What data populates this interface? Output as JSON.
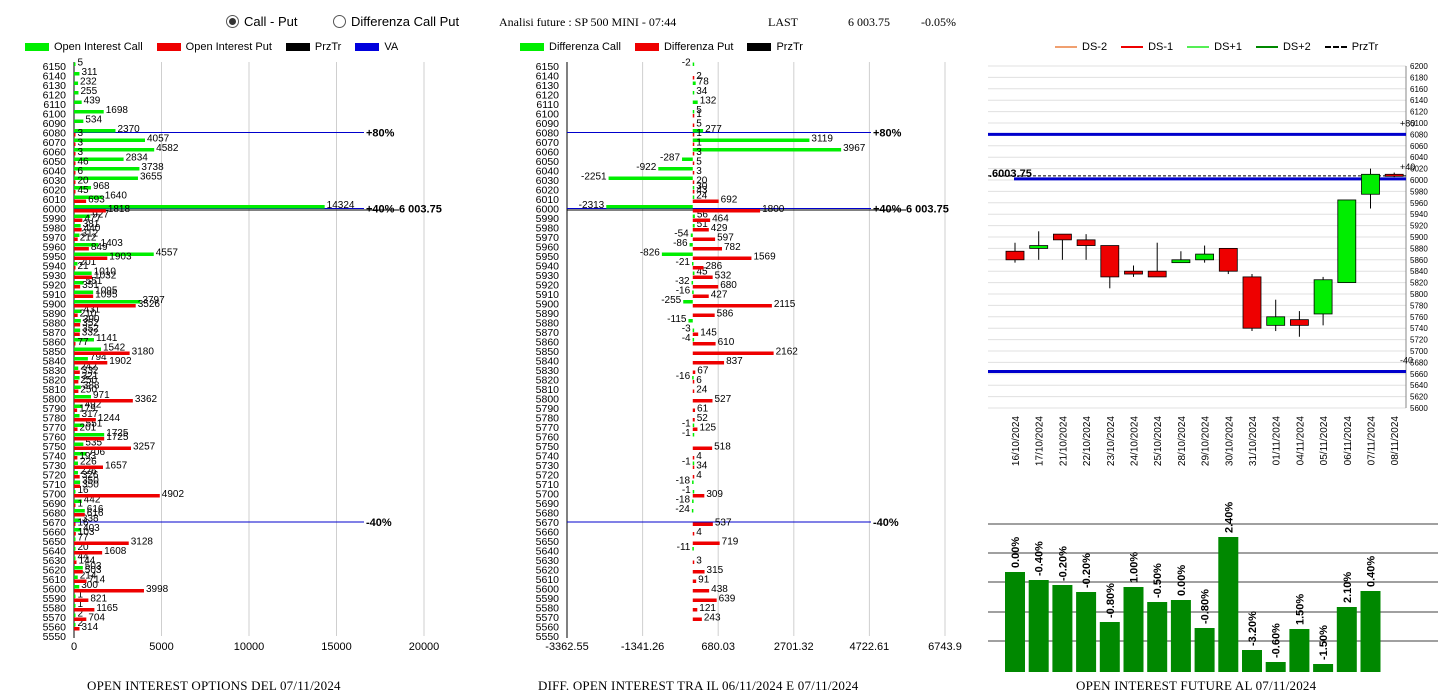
{
  "header": {
    "radio_call_put": "Call - Put",
    "radio_diff": "Differenza Call Put",
    "title": "Analisi future : SP 500 MINI - 07:44",
    "last_label": "LAST",
    "last_value": "6 003.75",
    "last_change": "-0.05%"
  },
  "legend1": [
    {
      "label": "Open Interest Call",
      "color": "#00ee00"
    },
    {
      "label": "Open Interest Put",
      "color": "#ee0000"
    },
    {
      "label": "PrzTr",
      "color": "#000000"
    },
    {
      "label": "VA",
      "color": "#0000dd"
    }
  ],
  "legend2": [
    {
      "label": "Differenza Call",
      "color": "#00ee00"
    },
    {
      "label": "Differenza Put",
      "color": "#ee0000"
    },
    {
      "label": "PrzTr",
      "color": "#000000"
    }
  ],
  "legend3": [
    {
      "label": "DS-2",
      "color": "#f0a070",
      "dash": false
    },
    {
      "label": "DS-1",
      "color": "#ee0000",
      "dash": false
    },
    {
      "label": "DS+1",
      "color": "#55ee55",
      "dash": false
    },
    {
      "label": "DS+2",
      "color": "#008800",
      "dash": false
    },
    {
      "label": "PrzTr",
      "color": "#000000",
      "dash": true
    }
  ],
  "captions": {
    "c1": "OPEN INTEREST OPTIONS DEL 07/11/2024",
    "c2": "DIFF. OPEN INTEREST TRA IL 06/11/2024 E 07/11/2024",
    "c3": "OPEN INTEREST FUTURE AL 07/11/2024"
  },
  "chart_data": [
    {
      "type": "bar",
      "orientation": "horizontal",
      "strikes": [
        6150,
        6140,
        6130,
        6120,
        6110,
        6100,
        6090,
        6080,
        6070,
        6060,
        6050,
        6040,
        6030,
        6020,
        6010,
        6000,
        5990,
        5980,
        5970,
        5960,
        5950,
        5940,
        5930,
        5920,
        5910,
        5900,
        5890,
        5880,
        5870,
        5860,
        5850,
        5840,
        5830,
        5820,
        5810,
        5800,
        5790,
        5780,
        5770,
        5760,
        5750,
        5740,
        5730,
        5720,
        5710,
        5700,
        5690,
        5680,
        5670,
        5660,
        5650,
        5640,
        5630,
        5620,
        5610,
        5600,
        5590,
        5580,
        5570,
        5560,
        5550
      ],
      "strike_labels": [
        "6150",
        "6140",
        "6130",
        "6120",
        "6110",
        "6100",
        "6090",
        "6080",
        "6070",
        "6060",
        "6050",
        "6040",
        "6030",
        "6020",
        "6010",
        "6000",
        "5990",
        "5980",
        "5970",
        "5960",
        "5950",
        "5940",
        "5930",
        "5920",
        "5910",
        "5900",
        "5890",
        "5880",
        "5870",
        "5860",
        "5850",
        "5840",
        "5830",
        "5820",
        "5810",
        "5800",
        "5790",
        "5780",
        "5770",
        "5760",
        "5750",
        "5740",
        "5730",
        "5720",
        "5710",
        "5700",
        "5690",
        "5680",
        "5670",
        "5660",
        "5650",
        "5640",
        "5630",
        "5620",
        "5610",
        "5600",
        "5590",
        "5580",
        "5570",
        "5560",
        "5550"
      ],
      "series": [
        {
          "name": "Open Interest Call",
          "values": [
            5,
            311,
            232,
            255,
            439,
            1698,
            534,
            2370,
            4057,
            4582,
            2834,
            3738,
            3655,
            968,
            1640,
            14324,
            927,
            381,
            312,
            1403,
            4557,
            201,
            1010,
            551,
            1095,
            3797,
            431,
            390,
            352,
            1141,
            1542,
            794,
            242,
            321,
            388,
            971,
            492,
            317,
            551,
            1725,
            535,
            706,
            226,
            226,
            350,
            16,
            442,
            616,
            338,
            403,
            77,
            20,
            44,
            503,
            214,
            300,
            1,
            1,
            2,
            2,
            0
          ]
        },
        {
          "name": "Open Interest Put",
          "values": [
            0,
            0,
            0,
            0,
            0,
            0,
            0,
            3,
            3,
            3,
            46,
            6,
            20,
            45,
            693,
            1818,
            477,
            440,
            212,
            849,
            1903,
            21,
            1032,
            351,
            1095,
            3526,
            210,
            352,
            332,
            77,
            3180,
            1902,
            332,
            250,
            250,
            3362,
            179,
            1244,
            201,
            1725,
            3257,
            193,
            1657,
            326,
            350,
            4902,
            1,
            616,
            16,
            103,
            3128,
            1608,
            144,
            503,
            714,
            3998,
            821,
            1165,
            704,
            314,
            0
          ]
        }
      ],
      "ticks": [
        "0",
        "5000",
        "10000",
        "15000",
        "20000"
      ],
      "xlim": [
        0,
        20000
      ],
      "markers": [
        {
          "strike": 6080,
          "label": "+80%"
        },
        {
          "strike": 6000,
          "label": "+40%"
        },
        {
          "strike": 5670,
          "label": "-40%"
        }
      ],
      "price_label": "6 003.75"
    },
    {
      "type": "bar",
      "orientation": "horizontal",
      "series": [
        {
          "name": "Differenza Call",
          "values": [
            -2,
            0,
            78,
            34,
            132,
            5,
            0,
            277,
            3119,
            3967,
            -287,
            -922,
            -2251,
            30,
            24,
            -2313,
            56,
            51,
            -54,
            -86,
            -826,
            -21,
            45,
            -32,
            -16,
            -255,
            0,
            -115,
            -3,
            -4,
            0,
            0,
            0,
            -16,
            0,
            0,
            0,
            0,
            -1,
            -1,
            0,
            0,
            -1,
            0,
            -18,
            -1,
            -18,
            -24,
            0,
            0,
            0,
            -11,
            0,
            0,
            0,
            0,
            0,
            0,
            0,
            0,
            0
          ]
        },
        {
          "name": "Differenza Put",
          "values": [
            0,
            2,
            0,
            0,
            0,
            1,
            5,
            1,
            1,
            3,
            5,
            3,
            20,
            43,
            692,
            1800,
            464,
            429,
            597,
            782,
            1569,
            286,
            532,
            680,
            427,
            2115,
            586,
            0,
            145,
            610,
            2162,
            837,
            67,
            6,
            24,
            527,
            61,
            52,
            125,
            0,
            518,
            4,
            34,
            4,
            0,
            309,
            0,
            0,
            537,
            4,
            719,
            0,
            3,
            315,
            91,
            438,
            639,
            121,
            243,
            0,
            0
          ]
        }
      ],
      "ticks": [
        "-3362.55",
        "-1341.26",
        "680.03",
        "2701.32",
        "4722.61",
        "6743.9"
      ],
      "xlim": [
        -3362.55,
        6743.9
      ],
      "markers": [
        {
          "strike": 6080,
          "label": "+80%"
        },
        {
          "strike": 6000,
          "label": "+40%"
        },
        {
          "strike": 5670,
          "label": "-40%"
        }
      ],
      "price_label": "6 003.75"
    },
    {
      "type": "candlestick",
      "dates": [
        "16/10/2024",
        "17/10/2024",
        "21/10/2024",
        "22/10/2024",
        "23/10/2024",
        "24/10/2024",
        "25/10/2024",
        "28/10/2024",
        "29/10/2024",
        "30/10/2024",
        "31/10/2024",
        "01/11/2024",
        "04/11/2024",
        "05/11/2024",
        "06/11/2024",
        "07/11/2024",
        "08/11/2024"
      ],
      "ohlc": [
        [
          5875,
          5890,
          5855,
          5860
        ],
        [
          5880,
          5910,
          5860,
          5885
        ],
        [
          5905,
          5905,
          5860,
          5895
        ],
        [
          5895,
          5905,
          5860,
          5885
        ],
        [
          5885,
          5885,
          5810,
          5830
        ],
        [
          5840,
          5850,
          5830,
          5835
        ],
        [
          5840,
          5890,
          5830,
          5830
        ],
        [
          5855,
          5875,
          5855,
          5860
        ],
        [
          5860,
          5885,
          5855,
          5870
        ],
        [
          5880,
          5880,
          5835,
          5840
        ],
        [
          5830,
          5835,
          5735,
          5740
        ],
        [
          5745,
          5790,
          5735,
          5760
        ],
        [
          5755,
          5770,
          5725,
          5745
        ],
        [
          5765,
          5830,
          5745,
          5825
        ],
        [
          5820,
          5965,
          5820,
          5965
        ],
        [
          5975,
          6020,
          5950,
          6010
        ],
        [
          6010,
          6013,
          6005,
          6008
        ]
      ],
      "yticks": [
        6200,
        6180,
        6160,
        6140,
        6120,
        6100,
        6080,
        6060,
        6040,
        6020,
        6000,
        5980,
        5960,
        5940,
        5920,
        5900,
        5880,
        5860,
        5840,
        5820,
        5800,
        5780,
        5760,
        5740,
        5720,
        5700,
        5680,
        5660,
        5640,
        5620,
        5600
      ],
      "ylim": [
        5600,
        6200
      ],
      "bands": [
        {
          "label": "+80",
          "value": 6080
        },
        {
          "label": "+40",
          "value": 6003.75
        },
        {
          "label": "-40",
          "value": 5664
        }
      ],
      "price_label": ".6003.75"
    },
    {
      "type": "bar",
      "categories": [
        "16/10/2024",
        "17/10/2024",
        "21/10/2024",
        "22/10/2024",
        "23/10/2024",
        "24/10/2024",
        "25/10/2024",
        "28/10/2024",
        "29/10/2024",
        "30/10/2024",
        "31/10/2024",
        "01/11/2024",
        "04/11/2024",
        "05/11/2024",
        "06/11/2024",
        "07/11/2024",
        "08/11/2024"
      ],
      "values": [
        100,
        92,
        87,
        80,
        50,
        85,
        70,
        72,
        44,
        135,
        22,
        10,
        43,
        8,
        65,
        81,
        0
      ],
      "value_labels": [
        "0.00%",
        "-0.40%",
        "-0.20%",
        "-0.20%",
        "-0.80%",
        "1.00%",
        "-0.50%",
        "0.00%",
        "-0.80%",
        "2.40%",
        "-3.20%",
        "-0.60%",
        "1.50%",
        "-1.50%",
        "2.10%",
        "0.40%",
        ""
      ],
      "color": "#008800"
    }
  ]
}
